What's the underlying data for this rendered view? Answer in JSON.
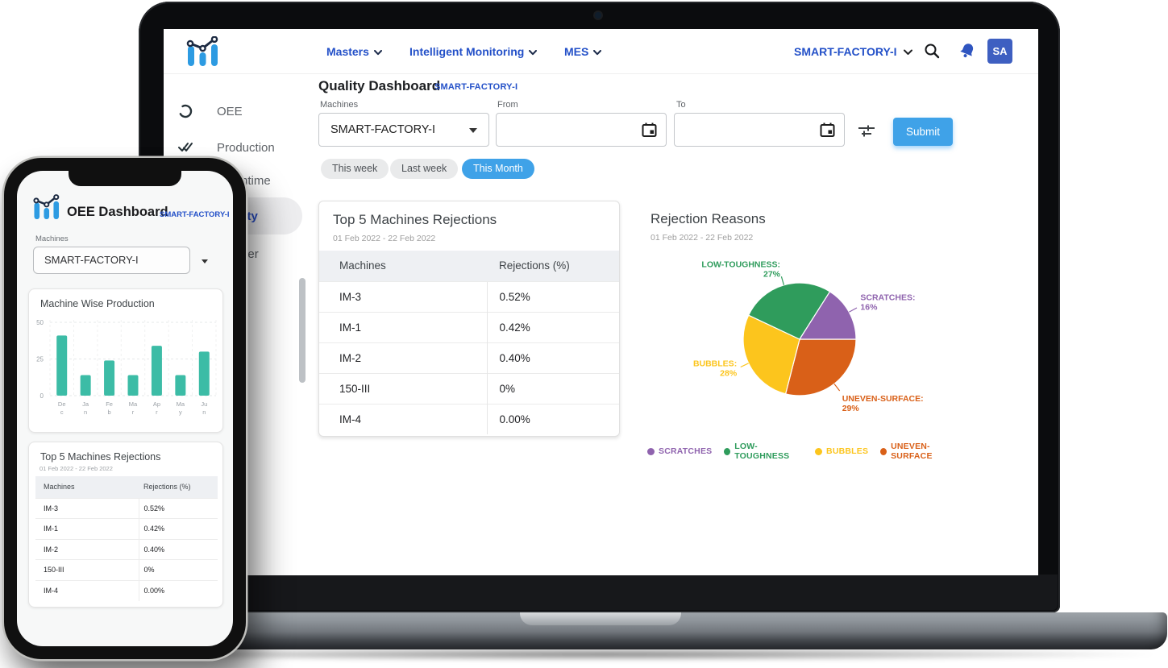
{
  "colors": {
    "brand_blue": "#2350c8",
    "action_blue": "#3fa2e8",
    "bar_teal": "#3cbca6",
    "avatar_bg": "#3e5fc1"
  },
  "laptop": {
    "header": {
      "nav": [
        {
          "label": "Masters"
        },
        {
          "label": "Intelligent Monitoring"
        },
        {
          "label": "MES"
        }
      ],
      "factory_selector": "SMART-FACTORY-I",
      "avatar_initials": "SA"
    },
    "sidebar": {
      "items": [
        {
          "label": "OEE",
          "selected": false
        },
        {
          "label": "Production",
          "selected": false
        },
        {
          "label": "Downtime",
          "selected": false
        },
        {
          "label": "Quality",
          "selected": true
        },
        {
          "label": "Planner",
          "selected": false
        }
      ]
    },
    "page": {
      "title": "Quality Dashboard",
      "factory_tag": "SMART-FACTORY-I",
      "filters": {
        "machines_label": "Machines",
        "machines_value": "SMART-FACTORY-I",
        "from_label": "From",
        "from_value": "",
        "to_label": "To",
        "to_value": "",
        "submit_label": "Submit"
      },
      "chips": [
        {
          "label": "This week",
          "active": false
        },
        {
          "label": "Last week",
          "active": false
        },
        {
          "label": "This Month",
          "active": true
        }
      ]
    }
  },
  "rejections_table": {
    "title": "Top 5 Machines Rejections",
    "date_range": "01 Feb 2022 - 22 Feb 2022",
    "columns": [
      "Machines",
      "Rejections (%)"
    ],
    "rows": [
      [
        "IM-3",
        "0.52%"
      ],
      [
        "IM-1",
        "0.42%"
      ],
      [
        "IM-2",
        "0.40%"
      ],
      [
        "150-III",
        "0%"
      ],
      [
        "IM-4",
        "0.00%"
      ]
    ]
  },
  "chart_data": [
    {
      "type": "pie",
      "title": "Rejection Reasons",
      "subtitle": "01 Feb 2022 - 22 Feb 2022",
      "slices": [
        {
          "label": "SCRATCHES",
          "value": 16,
          "color": "#8f63ae"
        },
        {
          "label": "LOW-TOUGHNESS",
          "value": 27,
          "color": "#2f9c5c"
        },
        {
          "label": "BUBBLES",
          "value": 28,
          "color": "#fcc51d"
        },
        {
          "label": "UNEVEN-SURFACE",
          "value": 29,
          "color": "#d96018"
        }
      ],
      "legend_position": "bottom",
      "label_format": "LABEL: value%"
    },
    {
      "type": "bar",
      "title": "Machine Wise Production",
      "categories": [
        "Dec",
        "Jan",
        "Feb",
        "Mar",
        "Apr",
        "May",
        "Jun"
      ],
      "values": [
        41,
        14,
        24,
        14,
        34,
        14,
        30
      ],
      "ylim": [
        0,
        50
      ],
      "yticks": [
        0,
        25,
        50
      ],
      "bar_color": "#3cbca6",
      "grid": true
    }
  ],
  "phone": {
    "app_title": "OEE Dashboard",
    "factory_tag": "SMART-FACTORY-I",
    "machines_label": "Machines",
    "machines_value": "SMART-FACTORY-I"
  }
}
